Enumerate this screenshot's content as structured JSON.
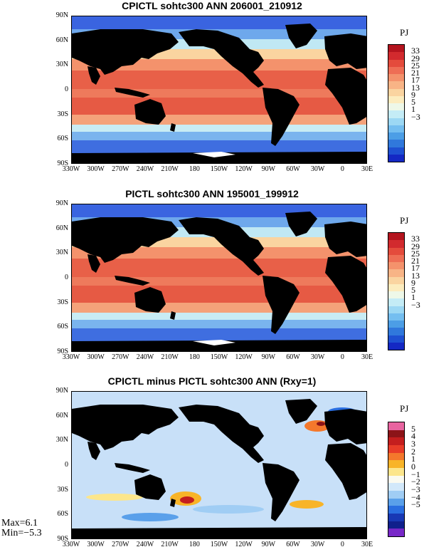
{
  "panels": [
    {
      "title": "CPICTL sohtc300 ANN 206001_210912",
      "unit": "PJ",
      "colorbar_labels": [
        "33",
        "29",
        "25",
        "21",
        "17",
        "13",
        "9",
        "5",
        "1",
        "−3"
      ],
      "colorbar_colors": [
        "#b4141e",
        "#d22a2e",
        "#e44b3c",
        "#ee6e55",
        "#f4926c",
        "#f8b486",
        "#fad4a0",
        "#fcecbe",
        "#eef8e8",
        "#c4ecf6",
        "#9cd8f4",
        "#74bef0",
        "#4c9ee6",
        "#3078dc",
        "#1e50d2",
        "#1428c4"
      ],
      "ocean_color": "#f4a27a"
    },
    {
      "title": "PICTL sohtc300 ANN 195001_199912",
      "unit": "PJ",
      "colorbar_labels": [
        "33",
        "29",
        "25",
        "21",
        "17",
        "13",
        "9",
        "5",
        "1",
        "−3"
      ],
      "colorbar_colors": [
        "#b4141e",
        "#d22a2e",
        "#e44b3c",
        "#ee6e55",
        "#f4926c",
        "#f8b486",
        "#fad4a0",
        "#fcecbe",
        "#eef8e8",
        "#c4ecf6",
        "#9cd8f4",
        "#74bef0",
        "#4c9ee6",
        "#3078dc",
        "#1e50d2",
        "#1428c4"
      ],
      "ocean_color": "#f28e6c"
    },
    {
      "title": "CPICTL minus PICTL sohtc300 ANN (Rxy=1)",
      "unit": "PJ",
      "colorbar_labels": [
        "5",
        "4",
        "3",
        "2",
        "1",
        "0",
        "−1",
        "−2",
        "−3",
        "−4",
        "−5"
      ],
      "colorbar_colors": [
        "#e864a0",
        "#8c1418",
        "#c41e1e",
        "#e83c28",
        "#f4782c",
        "#f8b428",
        "#fce68c",
        "#fafaf0",
        "#d2e8fa",
        "#a0cdf4",
        "#5aa0ea",
        "#2a6ee0",
        "#1838b4",
        "#10208c",
        "#7828c8"
      ],
      "ocean_color": "#c8e0f8",
      "max_label": "Max=6.1",
      "min_label": "Min=−5.3"
    }
  ],
  "lat_labels": [
    "90N",
    "60N",
    "30N",
    "0",
    "30S",
    "60S",
    "90S"
  ],
  "lon_labels": [
    "330W",
    "300W",
    "270W",
    "240W",
    "210W",
    "180",
    "150W",
    "120W",
    "90W",
    "60W",
    "30W",
    "0",
    "30E"
  ],
  "land_color": "#000000"
}
